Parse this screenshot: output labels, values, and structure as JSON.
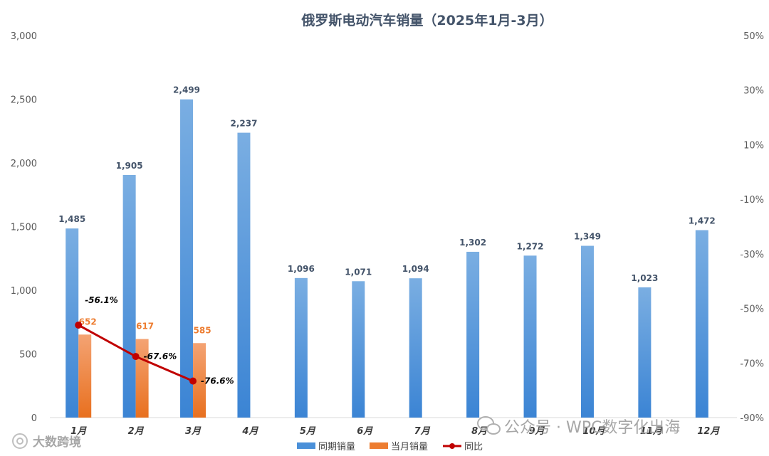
{
  "chart_data": {
    "type": "bar",
    "title": "俄罗斯电动汽车销量（2025年1月-3月）",
    "categories": [
      "1月",
      "2月",
      "3月",
      "4月",
      "5月",
      "6月",
      "7月",
      "8月",
      "9月",
      "10月",
      "11月",
      "12月"
    ],
    "series": [
      {
        "name": "同期销量",
        "type": "bar",
        "axis": "left",
        "color": "#4a90d9",
        "values": [
          1485,
          1905,
          2499,
          2237,
          1096,
          1071,
          1094,
          1302,
          1272,
          1349,
          1023,
          1472
        ],
        "labels": [
          "1,485",
          "1,905",
          "2,499",
          "2,237",
          "1,096",
          "1,071",
          "1,094",
          "1,302",
          "1,272",
          "1,349",
          "1,023",
          "1,472"
        ]
      },
      {
        "name": "当月销量",
        "type": "bar",
        "axis": "left",
        "color": "#ed7d31",
        "values": [
          652,
          617,
          585,
          null,
          null,
          null,
          null,
          null,
          null,
          null,
          null,
          null
        ],
        "labels": [
          "652",
          "617",
          "585",
          "",
          "",
          "",
          "",
          "",
          "",
          "",
          "",
          ""
        ]
      },
      {
        "name": "同比",
        "type": "line",
        "axis": "right",
        "color": "#c00000",
        "values": [
          -56.1,
          -67.6,
          -76.6,
          null,
          null,
          null,
          null,
          null,
          null,
          null,
          null,
          null
        ],
        "labels": [
          "-56.1%",
          "-67.6%",
          "-76.6%",
          "",
          "",
          "",
          "",
          "",
          "",
          "",
          "",
          ""
        ]
      }
    ],
    "ylim": [
      0,
      3000
    ],
    "yticks": [
      "0",
      "500",
      "1,000",
      "1,500",
      "2,000",
      "2,500",
      "3,000"
    ],
    "y2lim": [
      -90,
      50
    ],
    "y2ticks": [
      "-90%",
      "-70%",
      "-50%",
      "-30%",
      "-10%",
      "10%",
      "30%",
      "50%"
    ],
    "xlabel": "",
    "ylabel": "",
    "grid": false,
    "legend": "bottom"
  },
  "watermarks": {
    "left": "大数跨境",
    "right": "公众号 · WPC数字化出海"
  }
}
